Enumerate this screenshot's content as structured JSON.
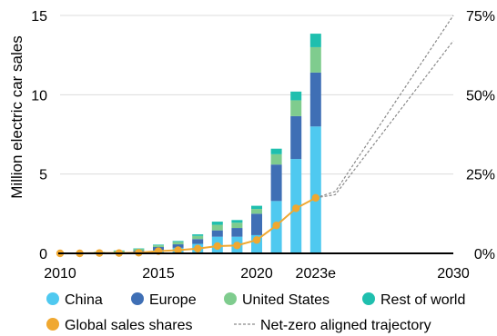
{
  "chart_data": {
    "type": "bar",
    "ylabel": "Million electric car sales",
    "ylim": [
      0,
      15
    ],
    "y_ticks": [
      "0",
      "5",
      "10",
      "15"
    ],
    "y2lim": [
      0,
      75
    ],
    "y2_ticks": [
      "0%",
      "25%",
      "50%",
      "75%"
    ],
    "xlim": [
      2010,
      2030
    ],
    "x_ticks": [
      "2010",
      "2015",
      "2020",
      "2023e",
      "2030"
    ],
    "x_tick_values": [
      2010,
      2015,
      2020,
      2023,
      2030
    ],
    "categories": [
      2010,
      2011,
      2012,
      2013,
      2014,
      2015,
      2016,
      2017,
      2018,
      2019,
      2020,
      2021,
      2022,
      2023
    ],
    "grid": "horizontal",
    "legend_position": "bottom",
    "series": [
      {
        "name": "China",
        "color": "#4fc9f0",
        "values": [
          0.0,
          0.0,
          0.01,
          0.02,
          0.07,
          0.2,
          0.35,
          0.6,
          1.05,
          1.05,
          1.15,
          3.3,
          5.95,
          8.0
        ]
      },
      {
        "name": "Europe",
        "color": "#3f6fb5",
        "values": [
          0.0,
          0.01,
          0.02,
          0.05,
          0.1,
          0.2,
          0.22,
          0.3,
          0.4,
          0.55,
          1.35,
          2.3,
          2.7,
          3.4
        ]
      },
      {
        "name": "United States",
        "color": "#7fcc8e",
        "values": [
          0.0,
          0.01,
          0.05,
          0.1,
          0.12,
          0.11,
          0.15,
          0.2,
          0.35,
          0.33,
          0.3,
          0.65,
          1.0,
          1.6
        ]
      },
      {
        "name": "Rest of world",
        "color": "#1fbfae",
        "values": [
          0.0,
          0.0,
          0.01,
          0.01,
          0.02,
          0.04,
          0.06,
          0.1,
          0.2,
          0.17,
          0.2,
          0.35,
          0.55,
          0.85
        ]
      }
    ],
    "share_series": {
      "name": "Global sales shares",
      "color": "#f0a830",
      "x": [
        2010,
        2011,
        2012,
        2013,
        2014,
        2015,
        2016,
        2017,
        2018,
        2019,
        2020,
        2021,
        2022,
        2023
      ],
      "values": [
        0.0,
        0.0,
        0.1,
        0.1,
        0.2,
        0.7,
        1.0,
        1.5,
        2.3,
        2.5,
        4.2,
        8.8,
        14.2,
        17.5
      ]
    },
    "trajectory_series": {
      "name": "Net-zero aligned trajectory",
      "color": "#8a8a8a",
      "lines": [
        {
          "x": [
            2023,
            2024,
            2030
          ],
          "values": [
            17.5,
            19.5,
            75.0
          ]
        },
        {
          "x": [
            2023,
            2024,
            2030
          ],
          "values": [
            17.5,
            18.5,
            67.0
          ]
        }
      ]
    }
  }
}
